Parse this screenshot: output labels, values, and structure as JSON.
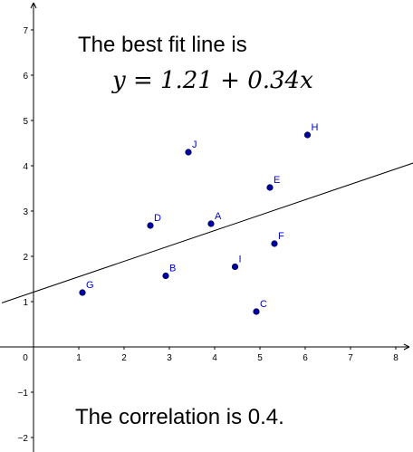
{
  "annotations": {
    "best_fit_heading": "The best fit line is",
    "equation": "y = 1.21 + 0.34x",
    "correlation": "The correlation is 0.4."
  },
  "colors": {
    "point": "#0000aa",
    "point_label": "#0000cc",
    "axis": "#000000",
    "line": "#000000"
  },
  "chart_data": {
    "type": "scatter",
    "title": "",
    "xlabel": "",
    "ylabel": "",
    "xlim": [
      -0.7,
      8.3
    ],
    "ylim": [
      -2.25,
      7.55
    ],
    "grid": false,
    "x_ticks": [
      0,
      1,
      2,
      3,
      4,
      5,
      6,
      7,
      8
    ],
    "y_ticks": [
      -2,
      -1,
      1,
      2,
      3,
      4,
      5,
      6,
      7
    ],
    "origin_label": "0",
    "points": [
      {
        "label": "A",
        "x": 3.92,
        "y": 2.72
      },
      {
        "label": "B",
        "x": 2.92,
        "y": 1.57
      },
      {
        "label": "C",
        "x": 4.92,
        "y": 0.78
      },
      {
        "label": "D",
        "x": 2.58,
        "y": 2.68
      },
      {
        "label": "E",
        "x": 5.22,
        "y": 3.52
      },
      {
        "label": "F",
        "x": 5.32,
        "y": 2.28
      },
      {
        "label": "G",
        "x": 1.08,
        "y": 1.2
      },
      {
        "label": "H",
        "x": 6.05,
        "y": 4.68
      },
      {
        "label": "I",
        "x": 4.45,
        "y": 1.77
      },
      {
        "label": "J",
        "x": 3.42,
        "y": 4.3
      }
    ],
    "fit_line": {
      "intercept": 1.21,
      "slope": 0.34
    }
  }
}
